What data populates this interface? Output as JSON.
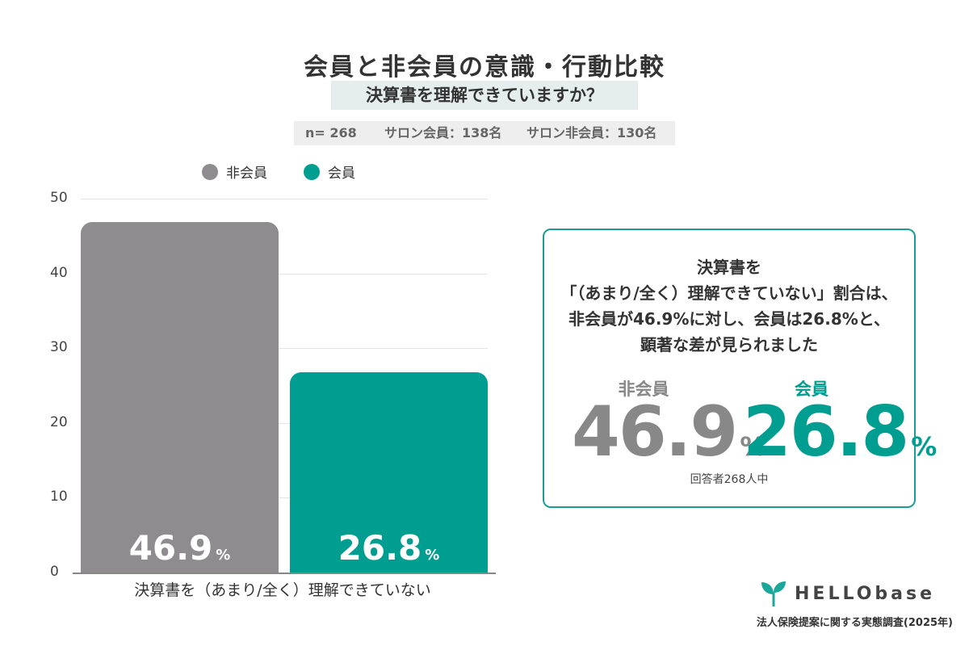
{
  "header": {
    "title": "会員と非会員の意識・行動比較",
    "subtitle": "決算書を理解できていますか？",
    "sample_total": "n= 268",
    "sample_members": "サロン会員：138名",
    "sample_nonmembers": "サロン非会員：130名"
  },
  "legend": [
    {
      "label": "非会員",
      "color": "#8e8c8f"
    },
    {
      "label": "会員",
      "color": "#009e91"
    }
  ],
  "chart_data": {
    "type": "bar",
    "categories": [
      "決算書を（あまり/全く）理解できていない"
    ],
    "series": [
      {
        "name": "非会員",
        "values": [
          46.9
        ],
        "color": "#8e8c8f"
      },
      {
        "name": "会員",
        "values": [
          26.8
        ],
        "color": "#009e91"
      }
    ],
    "ylim": [
      0,
      50
    ],
    "yticks": [
      0,
      10,
      20,
      30,
      40,
      50
    ],
    "value_labels": [
      "46.9",
      "26.8"
    ],
    "value_unit": "%",
    "grid": true
  },
  "summary": {
    "line1": "決算書を",
    "line2": "「（あまり/全く）理解できていない」割合は、",
    "line3": "非会員が46.9%に対し、会員は26.8%と、",
    "line4": "顕著な差が見られました",
    "nonmember_label": "非会員",
    "nonmember_value": "46.9",
    "member_label": "会員",
    "member_value": "26.8",
    "unit": "%",
    "footnote": "回答者268人中"
  },
  "branding": {
    "logo_text": "HELLObase",
    "source": "法人保険提案に関する実態調査(2025年)",
    "logo_color": "#1aa89a"
  }
}
